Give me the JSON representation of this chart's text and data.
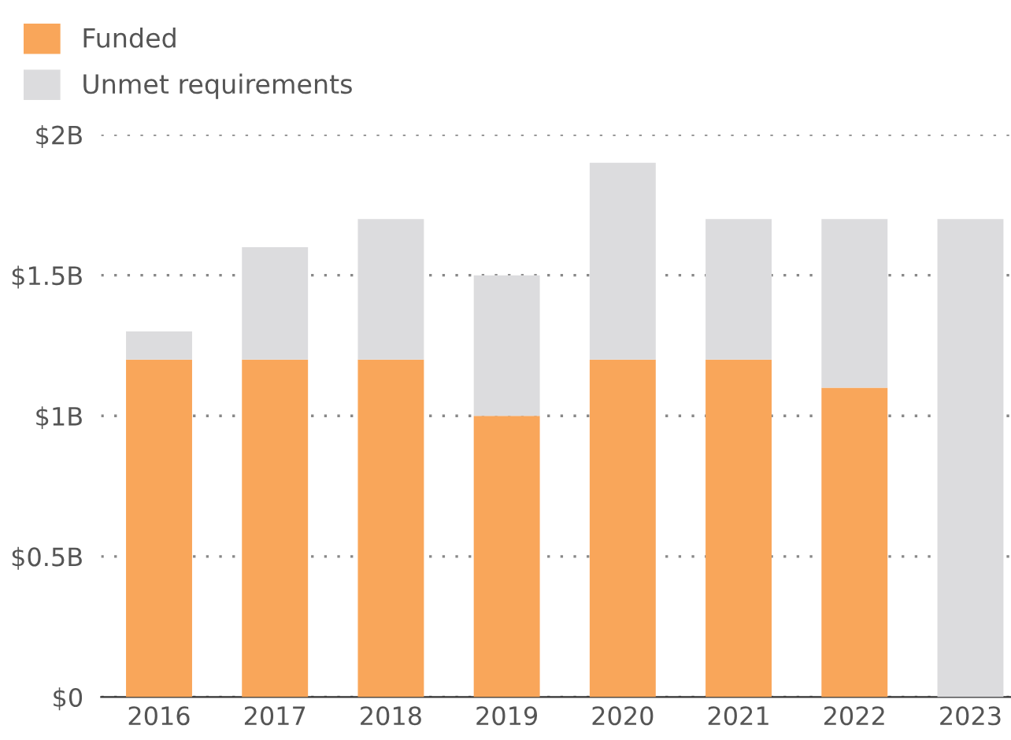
{
  "chart_data": {
    "type": "bar",
    "stacked": true,
    "categories": [
      "2016",
      "2017",
      "2018",
      "2019",
      "2020",
      "2021",
      "2022",
      "2023"
    ],
    "series": [
      {
        "name": "Funded",
        "color": "#f9a65a",
        "values": [
          1.2,
          1.2,
          1.2,
          1.0,
          1.2,
          1.2,
          1.1,
          0
        ]
      },
      {
        "name": "Unmet requirements",
        "color": "#dcdcde",
        "values": [
          0.1,
          0.4,
          0.5,
          0.5,
          0.7,
          0.5,
          0.6,
          1.7
        ]
      }
    ],
    "ylim": [
      0,
      2
    ],
    "yticks": [
      {
        "value": 0,
        "label": "$0"
      },
      {
        "value": 0.5,
        "label": "$0.5B"
      },
      {
        "value": 1,
        "label": "$1B"
      },
      {
        "value": 1.5,
        "label": "$1.5B"
      },
      {
        "value": 2,
        "label": "$2B"
      }
    ],
    "grid": "y",
    "legend": "top left"
  }
}
